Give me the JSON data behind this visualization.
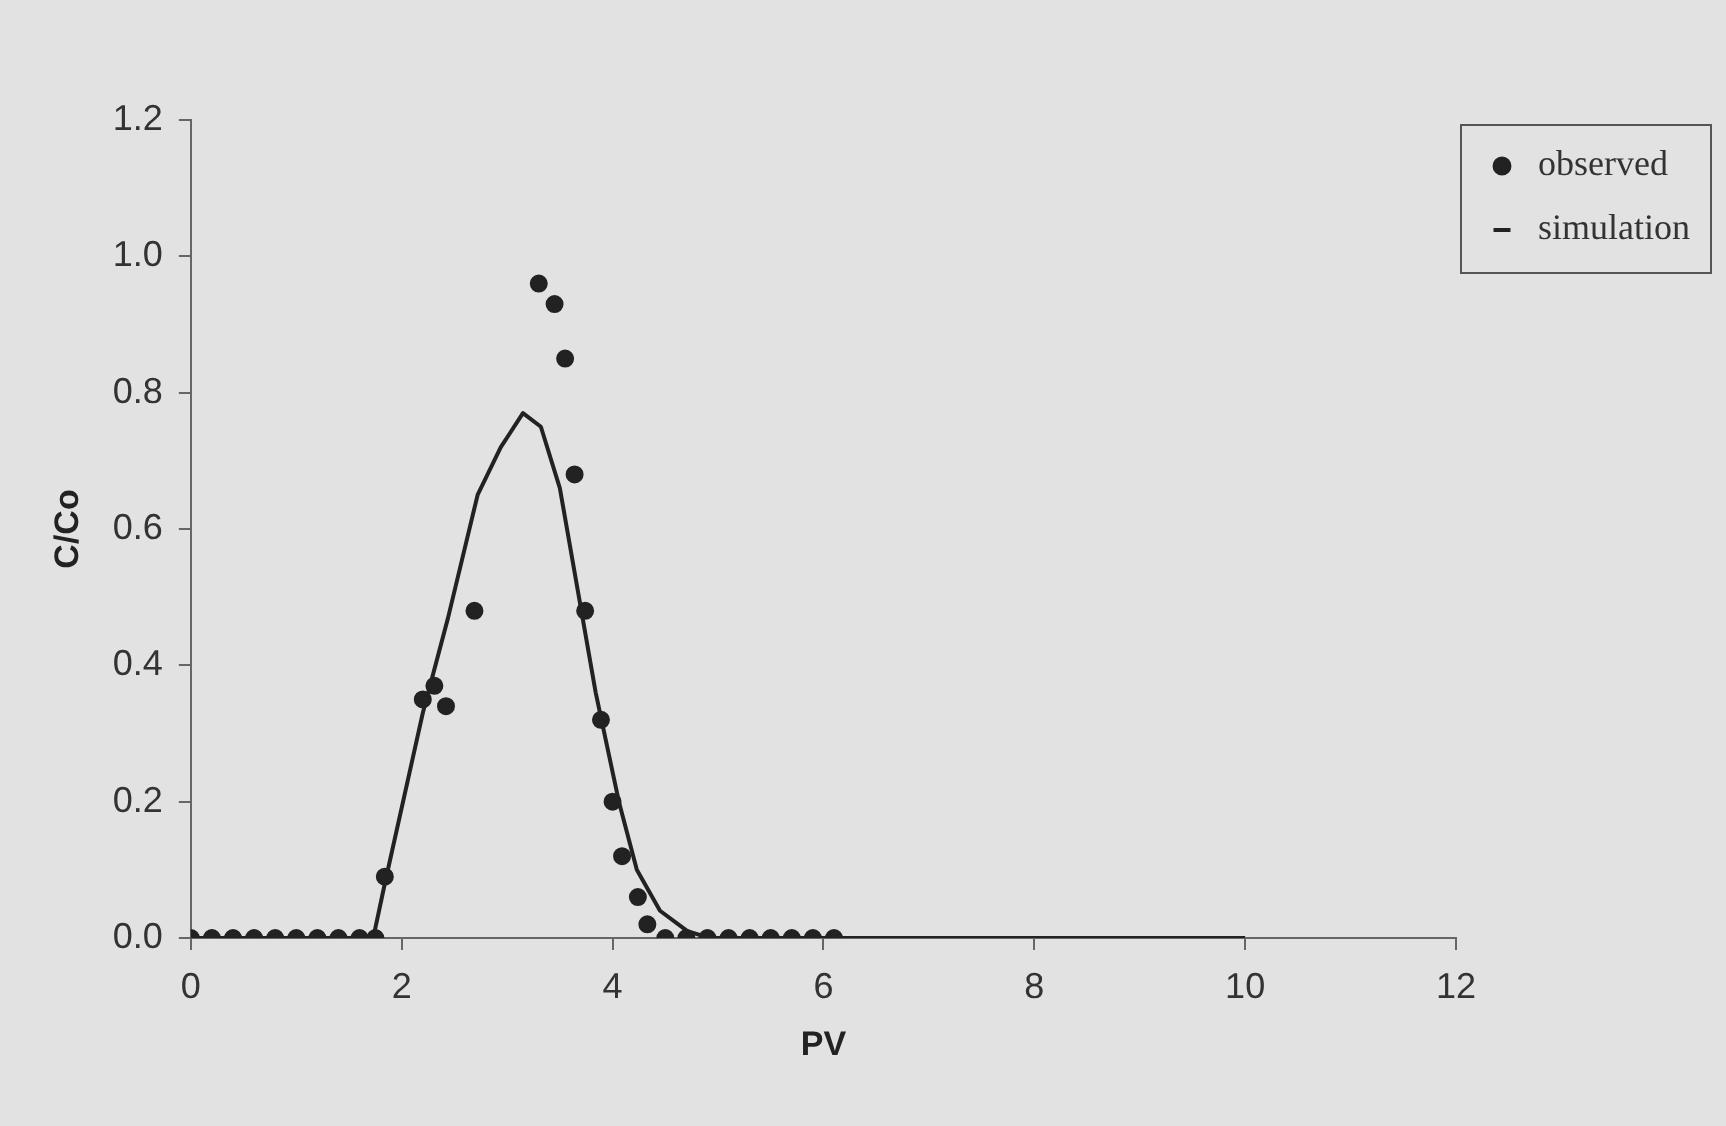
{
  "chart_data": {
    "type": "scatter",
    "xlabel": "PV",
    "ylabel": "C/Co",
    "xlim": [
      0,
      12
    ],
    "xticks": [
      0,
      2,
      4,
      6,
      8,
      10,
      12
    ],
    "ylim": [
      0,
      1.2
    ],
    "yticks": [
      {
        "value": 0,
        "label": "0.0"
      },
      {
        "value": 0.2,
        "label": "0.2"
      },
      {
        "value": 0.4,
        "label": "0.4"
      },
      {
        "value": 0.6,
        "label": "0.6"
      },
      {
        "value": 0.8,
        "label": "0.8"
      },
      {
        "value": 1,
        "label": "1.0"
      },
      {
        "value": 1.2,
        "label": "1.2"
      }
    ],
    "grid": false,
    "legend": "right",
    "series": [
      {
        "name": "observed",
        "type": "scatter",
        "color": "#222222",
        "marker": "circle",
        "x": [
          0,
          0.2,
          0.4,
          0.6,
          0.8,
          1,
          1.2,
          1.4,
          1.6,
          1.75,
          1.84,
          2.2,
          2.31,
          2.42,
          2.69,
          3.3,
          3.45,
          3.55,
          3.64,
          3.74,
          3.89,
          4,
          4.09,
          4.24,
          4.33,
          4.5,
          4.7,
          4.9,
          5.1,
          5.3,
          5.5,
          5.7,
          5.9,
          6.1
        ],
        "values": [
          0,
          0,
          0,
          0,
          0,
          0,
          0,
          0,
          0,
          0,
          0.09,
          0.35,
          0.37,
          0.34,
          0.48,
          0.96,
          0.93,
          0.85,
          0.68,
          0.48,
          0.32,
          0.2,
          0.12,
          0.06,
          0.02,
          0,
          0,
          0,
          0,
          0,
          0,
          0,
          0,
          0
        ]
      },
      {
        "name": "simulation",
        "type": "line",
        "color": "#222222",
        "marker": "none",
        "line_style": "solid",
        "x": [
          0,
          1.73,
          1.84,
          2.2,
          2.44,
          2.72,
          2.94,
          3.15,
          3.32,
          3.5,
          3.67,
          3.84,
          4.06,
          4.23,
          4.45,
          4.71,
          4.92,
          10
        ],
        "values": [
          0,
          0,
          0.08,
          0.33,
          0.47,
          0.65,
          0.72,
          0.77,
          0.75,
          0.66,
          0.51,
          0.36,
          0.2,
          0.1,
          0.04,
          0.01,
          0,
          0
        ]
      }
    ]
  }
}
